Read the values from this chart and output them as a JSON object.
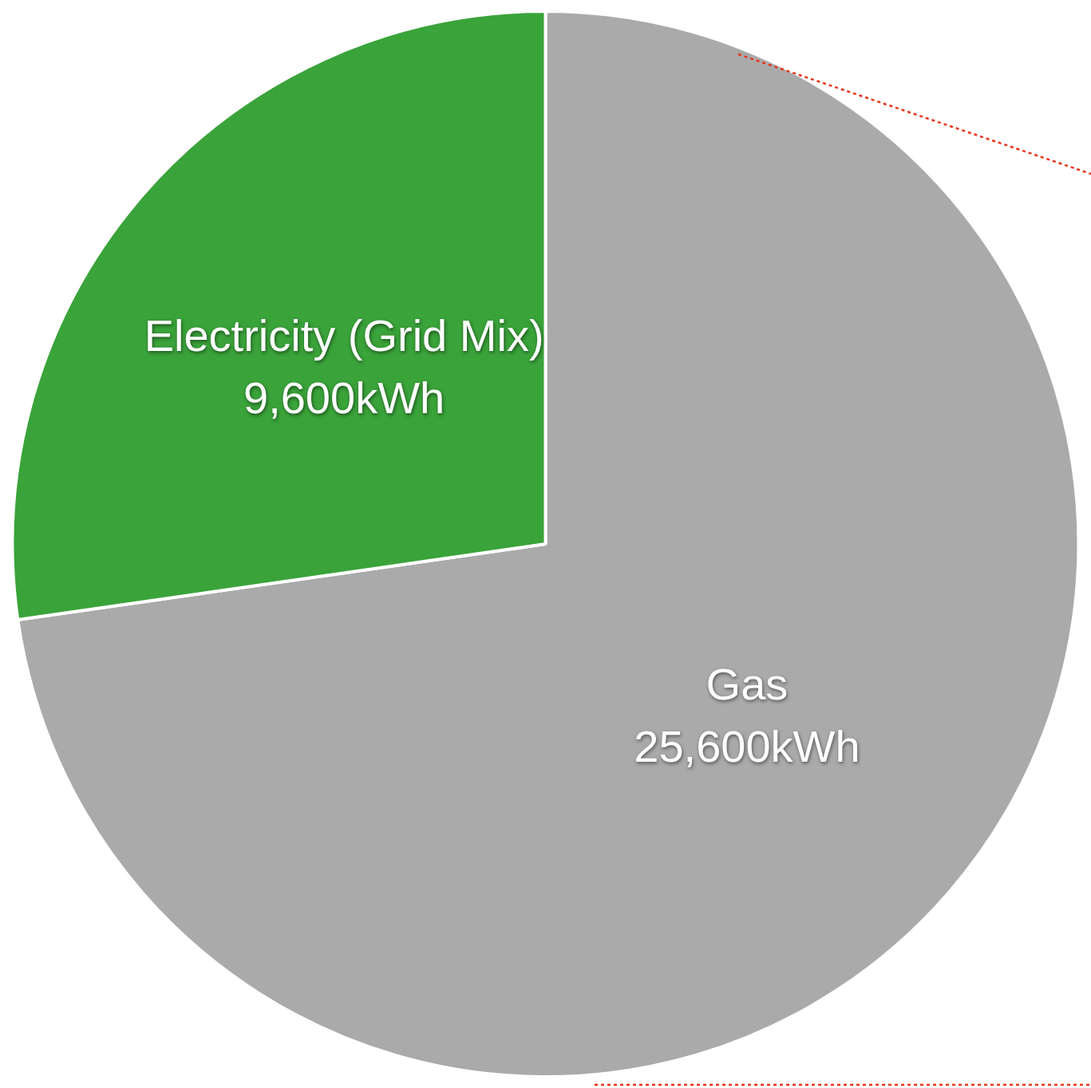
{
  "chart_data": {
    "type": "pie",
    "categories": [
      "Gas",
      "Electricity (Grid Mix)"
    ],
    "values": [
      25600,
      9600
    ],
    "colors": [
      "#aaaaaa",
      "#3aa33a"
    ],
    "value_labels": [
      "25,600kWh",
      "9,600kWh"
    ]
  }
}
